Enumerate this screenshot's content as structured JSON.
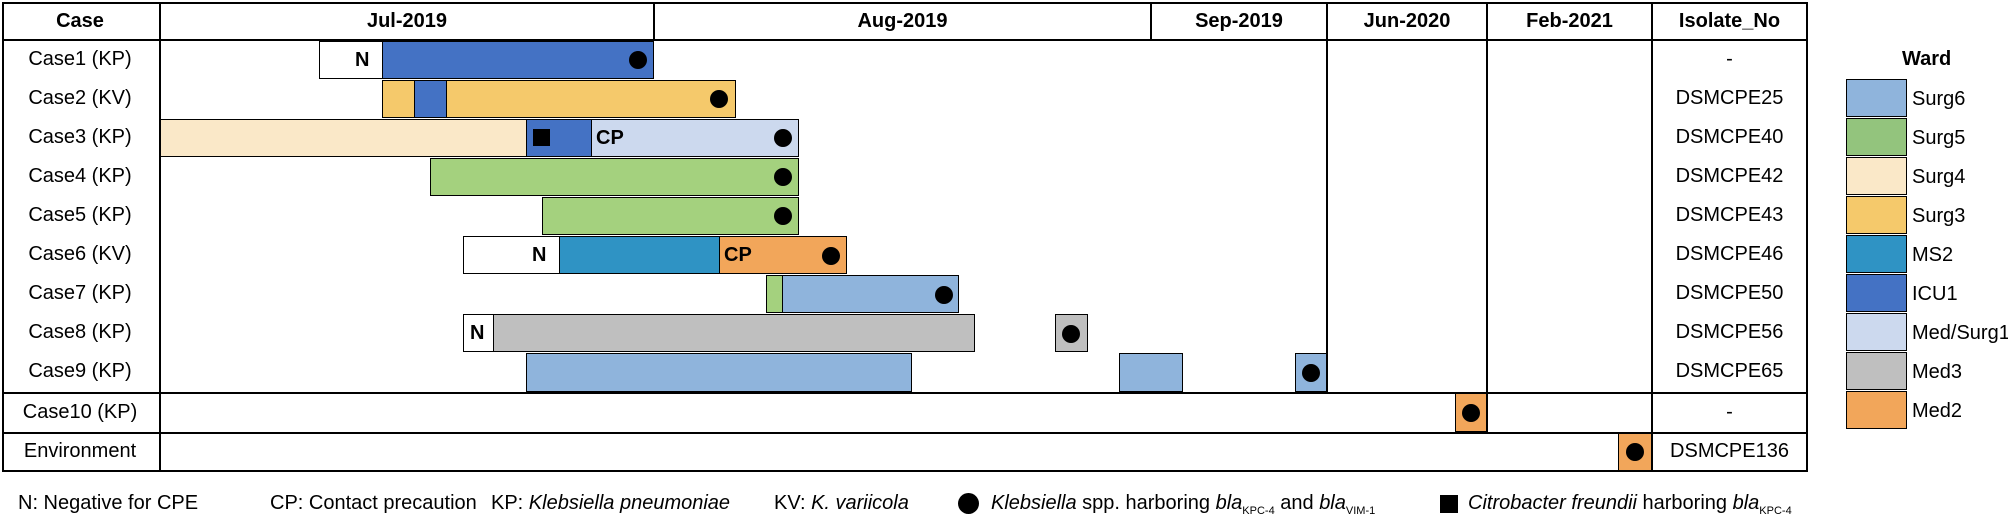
{
  "table": {
    "case_header": "Case",
    "isolate_header": "Isolate_No",
    "months": [
      "Jul-2019",
      "Aug-2019",
      "Sep-2019",
      "Jun-2020",
      "Feb-2021"
    ],
    "rows": [
      {
        "case": "Case1 (KP)",
        "isolate": "-"
      },
      {
        "case": "Case2 (KV)",
        "isolate": "DSMCPE25"
      },
      {
        "case": "Case3 (KP)",
        "isolate": "DSMCPE40"
      },
      {
        "case": "Case4 (KP)",
        "isolate": "DSMCPE42"
      },
      {
        "case": "Case5 (KP)",
        "isolate": "DSMCPE43"
      },
      {
        "case": "Case6 (KV)",
        "isolate": "DSMCPE46"
      },
      {
        "case": "Case7 (KP)",
        "isolate": "DSMCPE50"
      },
      {
        "case": "Case8 (KP)",
        "isolate": "DSMCPE56"
      },
      {
        "case": "Case9 (KP)",
        "isolate": "DSMCPE65"
      },
      {
        "case": "Case10 (KP)",
        "isolate": "-"
      },
      {
        "case": "Environment",
        "isolate": "DSMCPE136"
      }
    ]
  },
  "labels": {
    "negative": "N",
    "contact": "CP"
  },
  "legend": {
    "title": "Ward",
    "items": [
      {
        "label": "Surg6",
        "color": "#8fb4dc"
      },
      {
        "label": "Surg5",
        "color": "#93c47d"
      },
      {
        "label": "Surg4",
        "color": "#fae8c8"
      },
      {
        "label": "Surg3",
        "color": "#f5c96b"
      },
      {
        "label": "MS2",
        "color": "#2f93c4"
      },
      {
        "label": "ICU1",
        "color": "#4472c4"
      },
      {
        "label": "Med/Surg1",
        "color": "#ccd9ee"
      },
      {
        "label": "Med3",
        "color": "#bfbfbf"
      },
      {
        "label": "Med2",
        "color": "#f2a65a"
      }
    ]
  },
  "footnote": {
    "neg": "N: Negative for CPE",
    "cp": "CP: Contact precaution",
    "kp_prefix": "KP: ",
    "kp_species": "Klebsiella pneumoniae",
    "kv_prefix": "KV: ",
    "kv_species": "K. variicola",
    "circle_genus": "Klebsiella",
    "circle_text1": " spp. harboring ",
    "gene": "bla",
    "kpc": "KPC-4",
    "and": " and ",
    "vim": "VIM-1",
    "square_species": "Citrobacter freundii",
    "square_text": " harboring "
  }
}
